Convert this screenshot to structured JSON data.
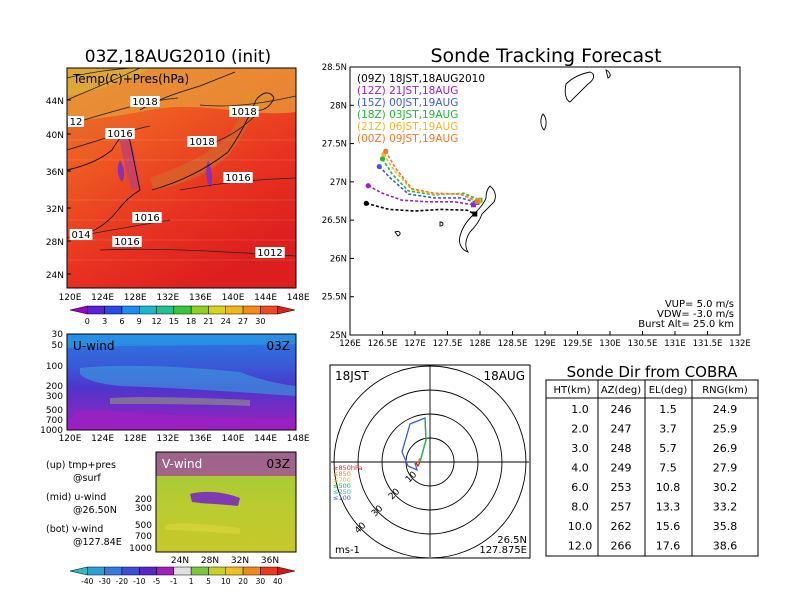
{
  "left_panel": {
    "title": "03Z,18AUG2010 (init)",
    "map_label": "Temp(C)+Pres(hPa)",
    "lat_ticks": [
      "44N",
      "40N",
      "36N",
      "32N",
      "28N",
      "24N"
    ],
    "lon_ticks": [
      "120E",
      "124E",
      "128E",
      "132E",
      "136E",
      "140E",
      "144E",
      "148E"
    ],
    "isobar_labels": [
      "1018",
      "1018",
      "12",
      "1016",
      "1018",
      "1016",
      "1016",
      "014",
      "1016",
      "1012"
    ],
    "temp_colorbar": {
      "ticks": [
        "0",
        "3",
        "6",
        "9",
        "12",
        "15",
        "18",
        "21",
        "24",
        "27",
        "30"
      ],
      "colors": [
        "#9a00c8",
        "#5a1fd8",
        "#2b49e8",
        "#1e8cf0",
        "#19b8cf",
        "#21c28e",
        "#38c83c",
        "#8ed024",
        "#d8d41c",
        "#f0b818",
        "#f58a1c",
        "#ec4a22",
        "#dc1e1e"
      ]
    }
  },
  "uwind_panel": {
    "label": "U-wind",
    "time": "03Z",
    "p_ticks": [
      "30",
      "50",
      "100",
      "200",
      "300",
      "500",
      "700",
      "1000"
    ],
    "lon_ticks": [
      "120E",
      "124E",
      "128E",
      "132E",
      "136E",
      "140E",
      "144E",
      "148E"
    ]
  },
  "vwind_panel": {
    "label": "V-wind",
    "time": "03Z",
    "p_ticks": [
      "200",
      "300",
      "500",
      "700",
      "1000"
    ],
    "lat_ticks": [
      "24N",
      "28N",
      "32N",
      "36N"
    ],
    "wind_colorbar": {
      "ticks": [
        "-40",
        "-30",
        "-20",
        "-10",
        "-5",
        "-1",
        "1",
        "5",
        "10",
        "20",
        "30",
        "40"
      ],
      "colors": [
        "#2fb8c4",
        "#2ea0d8",
        "#3a7ae0",
        "#3c4ed4",
        "#5a24c8",
        "#a020c0",
        "#e0e0e0",
        "#7cc83a",
        "#c8d02a",
        "#f0c020",
        "#f08a1c",
        "#e83a1e",
        "#d01a1a"
      ]
    }
  },
  "legend_notes": [
    {
      "line1": "(up) tmp+pres",
      "line2": "@surf"
    },
    {
      "line1": "(mid) u-wind",
      "line2": "@26.50N"
    },
    {
      "line1": "(bot) v-wind",
      "line2": "@127.84E"
    }
  ],
  "tracking": {
    "title": "Sonde Tracking Forecast",
    "lat_ticks": [
      "28.5N",
      "28N",
      "27.5N",
      "27N",
      "26.5N",
      "26N",
      "25.5N",
      "25N"
    ],
    "lon_ticks": [
      "126E",
      "126.5E",
      "127E",
      "127.5E",
      "128E",
      "128.5E",
      "129E",
      "129.5E",
      "130E",
      "130.5E",
      "131E",
      "131.5E",
      "132E"
    ],
    "legend": [
      {
        "text": "(09Z)  18JST,18AUG2010",
        "color": "#000000"
      },
      {
        "text": "(12Z)  21JST,18AUG",
        "color": "#a020c8"
      },
      {
        "text": "(15Z)  00JST,19AUG",
        "color": "#3a5ae8"
      },
      {
        "text": "(18Z)  03JST,19AUG",
        "color": "#22b83a"
      },
      {
        "text": "(21Z)  06JST,19AUG",
        "color": "#f0b82a"
      },
      {
        "text": "(00Z)  09JST,19AUG",
        "color": "#f07828"
      }
    ],
    "params": [
      "VUP=  5.0  m/s",
      "VDW= -3.0  m/s",
      "Burst Alt=  25.0  km"
    ]
  },
  "polar": {
    "time_left": "18JST",
    "date_right": "18AUG",
    "ring_labels": [
      "10",
      "20",
      "30",
      "40"
    ],
    "pressure_legend": [
      {
        "text": "≥850hPa",
        "color": "#e02020"
      },
      {
        "text": "≤850",
        "color": "#f08a1c"
      },
      {
        "text": "≤700",
        "color": "#e8c020"
      },
      {
        "text": "≤500",
        "color": "#22b83a"
      },
      {
        "text": "≤250",
        "color": "#2ab0d8"
      },
      {
        "text": "≤100",
        "color": "#3a5ae8"
      }
    ],
    "unit": "ms-1",
    "loc_lat": "26.5N",
    "loc_lon": "127.875E"
  },
  "table": {
    "title": "Sonde Dir from COBRA",
    "headers": [
      "HT(km)",
      "AZ(deg)",
      "EL(deg)",
      "RNG(km)"
    ],
    "rows": [
      [
        "1.0",
        "246",
        "1.5",
        "24.9"
      ],
      [
        "2.0",
        "247",
        "3.7",
        "25.9"
      ],
      [
        "3.0",
        "248",
        "5.7",
        "26.9"
      ],
      [
        "4.0",
        "249",
        "7.5",
        "27.9"
      ],
      [
        "6.0",
        "253",
        "10.8",
        "30.2"
      ],
      [
        "8.0",
        "257",
        "13.3",
        "33.2"
      ],
      [
        "10.0",
        "262",
        "15.6",
        "35.8"
      ],
      [
        "12.0",
        "266",
        "17.6",
        "38.6"
      ]
    ]
  },
  "chart_data": [
    {
      "type": "line",
      "title": "Sonde Tracking Forecast",
      "xlim": [
        126,
        132
      ],
      "ylim": [
        25,
        28.5
      ],
      "series": [
        {
          "name": "(09Z)  18JST,18AUG2010",
          "x": [
            126.25,
            126.6,
            127.0,
            127.4,
            127.8,
            127.92
          ],
          "y": [
            26.72,
            26.64,
            26.62,
            26.64,
            26.63,
            26.58
          ]
        },
        {
          "name": "(12Z)  21JST,18AUG",
          "x": [
            126.28,
            126.5,
            126.8,
            127.2,
            127.6,
            127.9
          ],
          "y": [
            26.95,
            26.85,
            26.76,
            26.74,
            26.74,
            26.7
          ]
        },
        {
          "name": "(15Z)  00JST,19AUG",
          "x": [
            126.45,
            126.62,
            126.9,
            127.3,
            127.7,
            127.95
          ],
          "y": [
            27.2,
            27.05,
            26.84,
            26.79,
            26.79,
            26.73
          ]
        },
        {
          "name": "(18Z)  03JST,19AUG",
          "x": [
            126.5,
            126.65,
            126.9,
            127.3,
            127.75,
            128.0
          ],
          "y": [
            27.3,
            27.1,
            26.88,
            26.83,
            26.85,
            26.76
          ]
        },
        {
          "name": "(21Z)  06JST,19AUG",
          "x": [
            126.52,
            126.68,
            126.95,
            127.3,
            127.7,
            127.98
          ],
          "y": [
            27.36,
            27.15,
            26.9,
            26.84,
            26.84,
            26.75
          ]
        },
        {
          "name": "(00Z)  09JST,19AUG",
          "x": [
            126.55,
            126.7,
            126.95,
            127.3,
            127.7,
            127.96
          ],
          "y": [
            27.4,
            27.18,
            26.91,
            26.85,
            26.84,
            26.74
          ]
        }
      ]
    },
    {
      "type": "table",
      "title": "Sonde Dir from COBRA",
      "columns": [
        "HT(km)",
        "AZ(deg)",
        "EL(deg)",
        "RNG(km)"
      ],
      "rows": [
        [
          1.0,
          246,
          1.5,
          24.9
        ],
        [
          2.0,
          247,
          3.7,
          25.9
        ],
        [
          3.0,
          248,
          5.7,
          26.9
        ],
        [
          4.0,
          249,
          7.5,
          27.9
        ],
        [
          6.0,
          253,
          10.8,
          30.2
        ],
        [
          8.0,
          257,
          13.3,
          33.2
        ],
        [
          10.0,
          262,
          15.6,
          35.8
        ],
        [
          12.0,
          266,
          17.6,
          38.6
        ]
      ]
    }
  ]
}
